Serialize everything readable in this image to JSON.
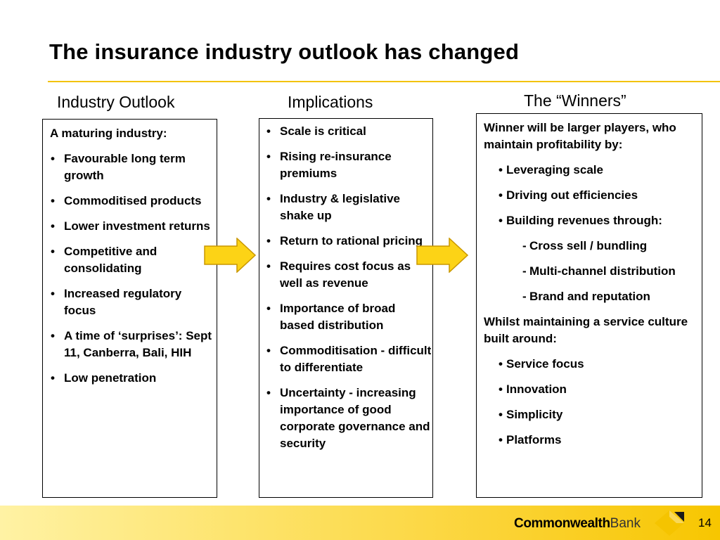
{
  "slide": {
    "title": "The insurance industry outlook has changed",
    "page_number": "14"
  },
  "columns": {
    "outlook": {
      "heading": "Industry Outlook",
      "lead": "A maturing industry:",
      "items": [
        "Favourable long term growth",
        "Commoditised products",
        "Lower investment returns",
        "Competitive and consolidating",
        "Increased regulatory focus",
        "A time of ‘surprises’: Sept 11, Canberra, Bali, HIH",
        "Low penetration"
      ]
    },
    "implications": {
      "heading": "Implications",
      "items": [
        "Scale is critical",
        "Rising re-insurance premiums",
        "Industry & legislative shake up",
        "Return to rational pricing",
        "Requires cost focus as well as revenue",
        "Importance of broad based distribution",
        "Commoditisation - difficult to differentiate",
        "Uncertainty - increasing importance of good corporate governance and security"
      ]
    },
    "winners": {
      "heading": "The “Winners”",
      "lead1": "Winner will be larger players, who maintain profitability by:",
      "profit_items": [
        "Leveraging scale",
        "Driving out efficiencies",
        "Building revenues through:"
      ],
      "revenue_subitems": [
        "Cross sell / bundling",
        "Multi-channel distribution",
        "Brand and reputation"
      ],
      "lead2": "Whilst maintaining a service culture built around:",
      "service_items": [
        "Service focus",
        "Innovation",
        "Simplicity",
        "Platforms"
      ]
    }
  },
  "footer": {
    "logo_bold": "Commonwealth",
    "logo_light": "Bank"
  },
  "colors": {
    "accent": "#f3c300",
    "arrow_fill": "#fcd316",
    "arrow_stroke": "#c99700"
  },
  "icons": {
    "arrow": "right-arrow-icon",
    "logo": "commonwealth-diamond-logo-icon"
  }
}
